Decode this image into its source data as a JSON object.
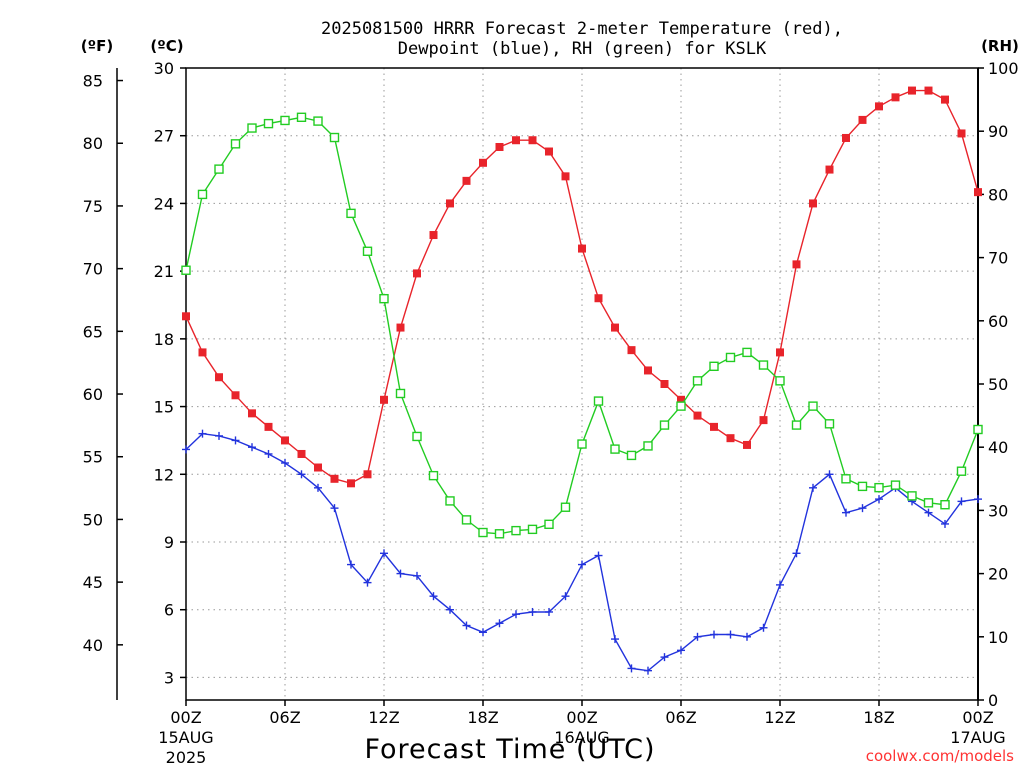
{
  "chart_data": {
    "type": "line",
    "title_line1": "2025081500 HRRR Forecast 2-meter Temperature (red),",
    "title_line2": "Dewpoint (blue), RH (green) for KSLK",
    "xlabel": "Forecast Time (UTC)",
    "credit": "coolwx.com/models",
    "unit_f": "(ºF)",
    "unit_c": "(ºC)",
    "unit_rh": "(RH)",
    "x_range_hours": [
      0,
      48
    ],
    "ylim_c": [
      2,
      30
    ],
    "ylim_rh": [
      0,
      100
    ],
    "grid": true,
    "x_ticks": [
      {
        "hour": 0,
        "label": "00Z",
        "sub1": "15AUG",
        "sub2": "2025"
      },
      {
        "hour": 6,
        "label": "06Z",
        "sub1": "",
        "sub2": ""
      },
      {
        "hour": 12,
        "label": "12Z",
        "sub1": "",
        "sub2": ""
      },
      {
        "hour": 18,
        "label": "18Z",
        "sub1": "",
        "sub2": ""
      },
      {
        "hour": 24,
        "label": "00Z",
        "sub1": "16AUG",
        "sub2": ""
      },
      {
        "hour": 30,
        "label": "06Z",
        "sub1": "",
        "sub2": ""
      },
      {
        "hour": 36,
        "label": "12Z",
        "sub1": "",
        "sub2": ""
      },
      {
        "hour": 42,
        "label": "18Z",
        "sub1": "",
        "sub2": ""
      },
      {
        "hour": 48,
        "label": "00Z",
        "sub1": "17AUG",
        "sub2": ""
      }
    ],
    "c_ticks": [
      3,
      6,
      9,
      12,
      15,
      18,
      21,
      24,
      27,
      30
    ],
    "f_ticks": [
      40,
      45,
      50,
      55,
      60,
      65,
      70,
      75,
      80,
      85
    ],
    "rh_ticks": [
      0,
      10,
      20,
      30,
      40,
      50,
      60,
      70,
      80,
      90,
      100
    ],
    "series": [
      {
        "name": "Temperature",
        "color": "#e8242b",
        "marker": "filled-square",
        "axis": "celsius",
        "hours": [
          0,
          1,
          2,
          3,
          4,
          5,
          6,
          7,
          8,
          9,
          10,
          11,
          12,
          13,
          14,
          15,
          16,
          17,
          18,
          19,
          20,
          21,
          22,
          23,
          24,
          25,
          26,
          27,
          28,
          29,
          30,
          31,
          32,
          33,
          34,
          35,
          36,
          37,
          38,
          39,
          40,
          41,
          42,
          43,
          44,
          45,
          46,
          47,
          48
        ],
        "values": [
          19.0,
          17.4,
          16.3,
          15.5,
          14.7,
          14.1,
          13.5,
          12.9,
          12.3,
          11.8,
          11.6,
          12.0,
          15.3,
          18.5,
          20.9,
          22.6,
          24.0,
          25.0,
          25.8,
          26.5,
          26.8,
          26.8,
          26.3,
          25.2,
          22.0,
          19.8,
          18.5,
          17.5,
          16.6,
          16.0,
          15.3,
          14.6,
          14.1,
          13.6,
          13.3,
          14.4,
          17.4,
          21.3,
          24.0,
          25.5,
          26.9,
          27.7,
          28.3,
          28.7,
          29.0,
          29.0,
          28.6,
          27.1,
          24.5
        ]
      },
      {
        "name": "Dewpoint",
        "color": "#2233dd",
        "marker": "plus",
        "axis": "celsius",
        "hours": [
          0,
          1,
          2,
          3,
          4,
          5,
          6,
          7,
          8,
          9,
          10,
          11,
          12,
          13,
          14,
          15,
          16,
          17,
          18,
          19,
          20,
          21,
          22,
          23,
          24,
          25,
          26,
          27,
          28,
          29,
          30,
          31,
          32,
          33,
          34,
          35,
          36,
          37,
          38,
          39,
          40,
          41,
          42,
          43,
          44,
          45,
          46,
          47,
          48
        ],
        "values": [
          13.1,
          13.8,
          13.7,
          13.5,
          13.2,
          12.9,
          12.5,
          12.0,
          11.4,
          10.5,
          8.0,
          7.2,
          8.5,
          7.6,
          7.5,
          6.6,
          6.0,
          5.3,
          5.0,
          5.4,
          5.8,
          5.9,
          5.9,
          6.6,
          8.0,
          8.4,
          4.7,
          3.4,
          3.3,
          3.9,
          4.2,
          4.8,
          4.9,
          4.9,
          4.8,
          5.2,
          7.1,
          8.5,
          11.4,
          12.0,
          10.3,
          10.5,
          10.9,
          11.4,
          10.8,
          10.3,
          9.8,
          10.8,
          10.9
        ]
      },
      {
        "name": "RH",
        "color": "#22cc22",
        "marker": "open-square",
        "axis": "rh",
        "hours": [
          0,
          1,
          2,
          3,
          4,
          5,
          6,
          7,
          8,
          9,
          10,
          11,
          12,
          13,
          14,
          15,
          16,
          17,
          18,
          19,
          20,
          21,
          22,
          23,
          24,
          25,
          26,
          27,
          28,
          29,
          30,
          31,
          32,
          33,
          34,
          35,
          36,
          37,
          38,
          39,
          40,
          41,
          42,
          43,
          44,
          45,
          46,
          47,
          48
        ],
        "values": [
          68,
          80,
          84,
          88,
          90.5,
          91.2,
          91.7,
          92.2,
          91.6,
          89,
          77,
          71,
          63.5,
          48.5,
          41.7,
          35.5,
          31.5,
          28.5,
          26.5,
          26.3,
          26.8,
          27,
          27.8,
          30.5,
          40.5,
          47.3,
          39.7,
          38.7,
          40.2,
          43.5,
          46.5,
          50.5,
          52.8,
          54.2,
          55,
          53,
          50.5,
          43.5,
          46.5,
          43.7,
          35,
          33.8,
          33.6,
          34,
          32.3,
          31.2,
          30.9,
          36.2,
          42.8
        ]
      }
    ]
  }
}
